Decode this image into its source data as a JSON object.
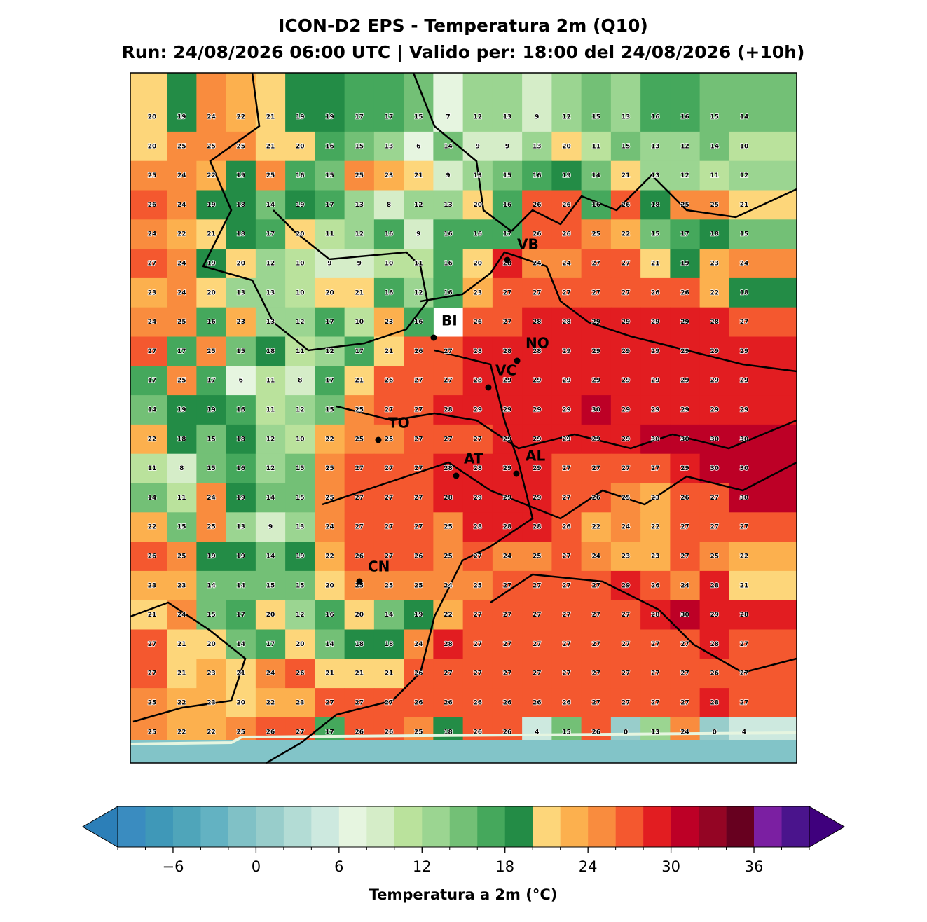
{
  "title": "ICON-D2 EPS - Temperatura 2m (Q10)",
  "subtitle": "Run: 24/08/2026 06:00 UTC | Valido per: 18:00 del 24/08/2026 (+10h)",
  "map": {
    "values": [
      [
        20,
        19,
        24,
        22,
        21,
        19,
        19,
        17,
        17,
        15,
        7,
        12,
        13,
        9,
        12,
        15,
        13,
        16,
        16,
        15,
        14
      ],
      [
        20,
        25,
        25,
        25,
        21,
        20,
        16,
        15,
        13,
        6,
        14,
        9,
        9,
        13,
        20,
        11,
        15,
        13,
        12,
        14,
        10
      ],
      [
        25,
        24,
        22,
        19,
        25,
        16,
        15,
        25,
        23,
        21,
        9,
        13,
        15,
        16,
        19,
        14,
        21,
        13,
        12,
        11,
        12
      ],
      [
        26,
        24,
        19,
        18,
        14,
        19,
        17,
        13,
        8,
        12,
        13,
        20,
        16,
        26,
        26,
        16,
        26,
        18,
        25,
        25,
        21
      ],
      [
        24,
        22,
        21,
        18,
        17,
        20,
        11,
        12,
        16,
        9,
        16,
        16,
        17,
        26,
        26,
        25,
        22,
        15,
        17,
        18,
        15
      ],
      [
        27,
        24,
        19,
        20,
        12,
        10,
        9,
        9,
        10,
        11,
        16,
        20,
        28,
        24,
        24,
        27,
        27,
        21,
        19,
        23,
        24
      ],
      [
        23,
        24,
        20,
        13,
        13,
        10,
        20,
        21,
        16,
        12,
        16,
        23,
        27,
        27,
        27,
        27,
        27,
        26,
        26,
        22,
        18
      ],
      [
        24,
        25,
        16,
        23,
        13,
        12,
        17,
        10,
        23,
        16,
        null,
        26,
        27,
        28,
        28,
        29,
        29,
        29,
        29,
        28,
        27
      ],
      [
        27,
        17,
        25,
        15,
        18,
        11,
        12,
        17,
        21,
        26,
        27,
        28,
        28,
        28,
        29,
        29,
        29,
        29,
        29,
        29,
        29
      ],
      [
        17,
        25,
        17,
        6,
        11,
        8,
        17,
        21,
        26,
        27,
        27,
        28,
        29,
        29,
        29,
        29,
        29,
        29,
        29,
        29,
        29
      ],
      [
        14,
        19,
        19,
        16,
        11,
        12,
        15,
        25,
        27,
        27,
        28,
        29,
        29,
        29,
        29,
        30,
        29,
        29,
        29,
        29,
        29
      ],
      [
        22,
        18,
        15,
        18,
        12,
        10,
        22,
        25,
        25,
        27,
        27,
        27,
        29,
        29,
        29,
        29,
        29,
        30,
        30,
        30,
        30
      ],
      [
        11,
        8,
        15,
        16,
        12,
        15,
        25,
        27,
        27,
        27,
        28,
        28,
        29,
        29,
        27,
        27,
        27,
        27,
        29,
        30,
        30
      ],
      [
        14,
        11,
        24,
        19,
        14,
        15,
        25,
        27,
        27,
        27,
        28,
        29,
        29,
        29,
        27,
        26,
        25,
        23,
        26,
        27,
        30
      ],
      [
        22,
        15,
        25,
        13,
        9,
        13,
        24,
        27,
        27,
        27,
        25,
        28,
        28,
        28,
        26,
        22,
        24,
        22,
        27,
        27,
        27
      ],
      [
        26,
        25,
        19,
        19,
        14,
        19,
        22,
        26,
        27,
        26,
        25,
        27,
        24,
        25,
        27,
        24,
        23,
        23,
        27,
        25,
        22
      ],
      [
        23,
        23,
        14,
        14,
        15,
        15,
        20,
        25,
        25,
        25,
        24,
        25,
        27,
        27,
        27,
        27,
        29,
        26,
        24,
        28,
        21
      ],
      [
        21,
        24,
        15,
        17,
        20,
        12,
        16,
        20,
        14,
        19,
        22,
        27,
        27,
        27,
        27,
        27,
        27,
        28,
        30,
        29,
        28
      ],
      [
        27,
        21,
        20,
        14,
        17,
        20,
        14,
        18,
        18,
        24,
        28,
        27,
        27,
        27,
        27,
        27,
        27,
        27,
        27,
        28,
        27
      ],
      [
        27,
        21,
        23,
        21,
        24,
        26,
        21,
        21,
        21,
        26,
        27,
        27,
        27,
        27,
        27,
        27,
        27,
        27,
        27,
        26,
        27
      ],
      [
        25,
        22,
        23,
        20,
        22,
        23,
        27,
        27,
        27,
        26,
        26,
        26,
        26,
        26,
        26,
        27,
        27,
        27,
        27,
        28,
        27
      ],
      [
        25,
        22,
        22,
        25,
        26,
        27,
        17,
        26,
        26,
        25,
        18,
        26,
        26,
        4,
        15,
        26,
        0,
        13,
        24,
        0,
        4
      ]
    ],
    "cities": [
      "VB",
      "BI",
      "NO",
      "VC",
      "TO",
      "AT",
      "AL",
      "CN"
    ]
  },
  "colorbar": {
    "label": "Temperatura a 2m (°C)",
    "levels": [
      -10,
      -8,
      -6,
      -4,
      -2,
      0,
      2,
      4,
      6,
      8,
      10,
      12,
      14,
      16,
      18,
      20,
      22,
      24,
      26,
      28,
      30,
      32,
      34,
      36,
      38,
      40
    ],
    "colors": [
      "#3a8cc0",
      "#3f98b8",
      "#4fa5ba",
      "#63b2c2",
      "#80c1c6",
      "#98cdcb",
      "#b3dcd5",
      "#cde9df",
      "#e6f5e0",
      "#d5edc8",
      "#bae29c",
      "#9bd591",
      "#73c076",
      "#45a85c",
      "#238c46",
      "#fdd67a",
      "#fcb04e",
      "#f98c3e",
      "#f4582f",
      "#e21d21",
      "#bd0026",
      "#940524",
      "#67001f",
      "#7b1fa2",
      "#4a148c"
    ],
    "under_color": "#2c7fb8",
    "over_color": "#3f007d",
    "ticks": [
      {
        "value": -6,
        "label": "−6"
      },
      0,
      6,
      12,
      18,
      24,
      30,
      36
    ]
  }
}
